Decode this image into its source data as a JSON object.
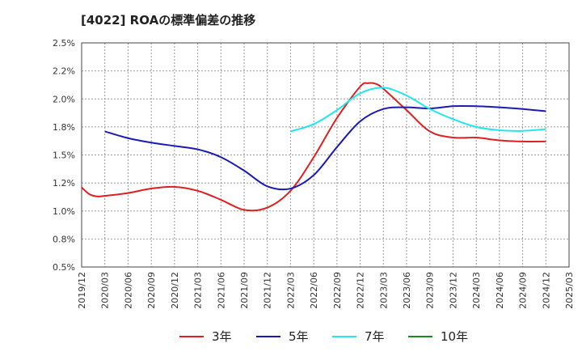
{
  "title": "[4022]  ROAの標準偏差の推移",
  "chart_data": {
    "type": "line",
    "title": "[4022]  ROAの標準偏差の推移",
    "xlabel": "",
    "ylabel": "",
    "ylim": [
      0.5,
      2.5
    ],
    "grid": true,
    "legend_position": "bottom",
    "y_ticks": [
      "0.5%",
      "0.8%",
      "1.0%",
      "1.2%",
      "1.5%",
      "1.8%",
      "2.0%",
      "2.2%",
      "2.5%"
    ],
    "x_ticks": [
      "2019/12",
      "2020/03",
      "2020/06",
      "2020/09",
      "2020/12",
      "2021/03",
      "2021/06",
      "2021/09",
      "2021/12",
      "2022/03",
      "2022/06",
      "2022/09",
      "2022/12",
      "2023/03",
      "2023/06",
      "2023/09",
      "2023/12",
      "2024/03",
      "2024/06",
      "2024/09",
      "2024/12",
      "2025/03"
    ],
    "series": [
      {
        "name": "3年",
        "color": "#e02020",
        "x": [
          "2019/12",
          "2020/01",
          "2020/02",
          "2020/03",
          "2020/06",
          "2020/09",
          "2020/12",
          "2021/03",
          "2021/06",
          "2021/09",
          "2021/12",
          "2022/03",
          "2022/06",
          "2022/09",
          "2022/12",
          "2023/01",
          "2023/02",
          "2023/03",
          "2023/06",
          "2023/09",
          "2023/12",
          "2024/03",
          "2024/06",
          "2024/09",
          "2024/12"
        ],
        "values": [
          1.21,
          1.15,
          1.13,
          1.135,
          1.16,
          1.2,
          1.215,
          1.18,
          1.1,
          1.01,
          1.03,
          1.18,
          1.48,
          1.83,
          2.11,
          2.14,
          2.135,
          2.09,
          1.9,
          1.71,
          1.655,
          1.655,
          1.63,
          1.62,
          1.62
        ]
      },
      {
        "name": "5年",
        "color": "#1a1ab8",
        "x": [
          "2020/03",
          "2020/06",
          "2020/09",
          "2020/12",
          "2021/03",
          "2021/06",
          "2021/09",
          "2021/12",
          "2022/03",
          "2022/06",
          "2022/09",
          "2022/12",
          "2023/03",
          "2023/06",
          "2023/09",
          "2023/12",
          "2024/03",
          "2024/06",
          "2024/09",
          "2024/12"
        ],
        "values": [
          1.71,
          1.65,
          1.61,
          1.58,
          1.55,
          1.48,
          1.36,
          1.22,
          1.2,
          1.32,
          1.57,
          1.8,
          1.91,
          1.925,
          1.915,
          1.935,
          1.935,
          1.925,
          1.91,
          1.89
        ]
      },
      {
        "name": "7年",
        "color": "#22e6f0",
        "x": [
          "2022/03",
          "2022/06",
          "2022/09",
          "2022/12",
          "2023/03",
          "2023/06",
          "2023/09",
          "2023/12",
          "2024/03",
          "2024/06",
          "2024/09",
          "2024/12"
        ],
        "values": [
          1.71,
          1.775,
          1.9,
          2.05,
          2.1,
          2.03,
          1.91,
          1.82,
          1.75,
          1.72,
          1.715,
          1.73
        ]
      },
      {
        "name": "10年",
        "color": "#1a8a1a",
        "x": [],
        "values": []
      }
    ]
  }
}
